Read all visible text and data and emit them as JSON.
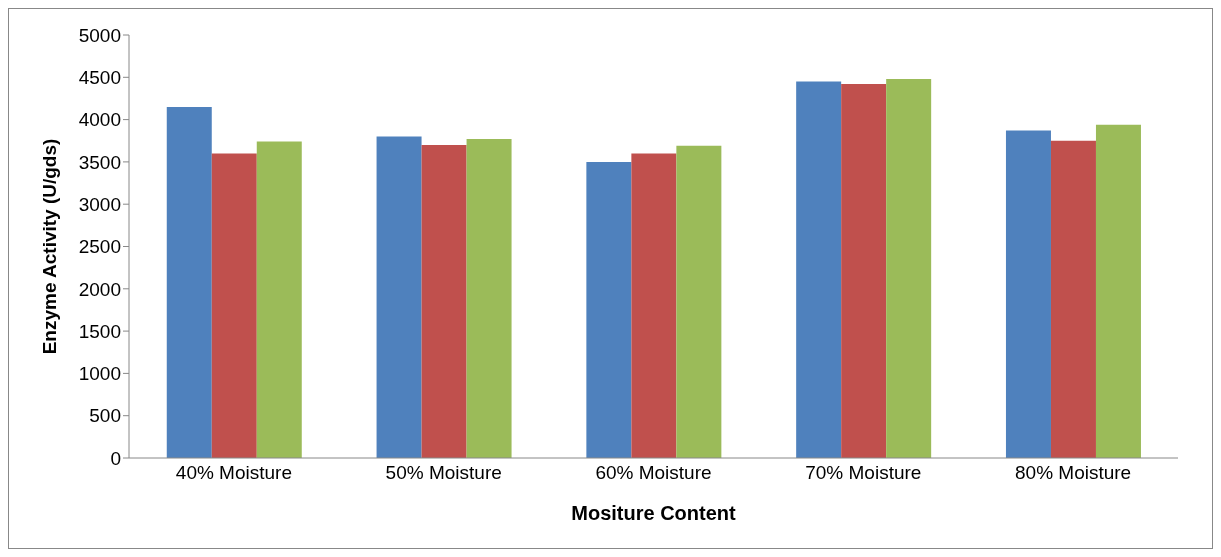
{
  "chart_data": {
    "type": "bar",
    "xlabel": "Mositure Content",
    "ylabel": "Enzyme Activity (U/gds)",
    "categories": [
      "40% Moisture",
      "50% Moisture",
      "60% Moisture",
      "70% Moisture",
      "80% Moisture"
    ],
    "series": [
      {
        "color": "#4f81bd",
        "values": [
          4150,
          3800,
          3500,
          4450,
          3870
        ]
      },
      {
        "color": "#c0504d",
        "values": [
          3600,
          3700,
          3600,
          4420,
          3750
        ]
      },
      {
        "color": "#9bbb59",
        "values": [
          3740,
          3770,
          3690,
          4480,
          3940
        ]
      }
    ],
    "ylim": [
      0,
      5000
    ],
    "yticks": [
      0,
      500,
      1000,
      1500,
      2000,
      2500,
      3000,
      3500,
      4000,
      4500,
      5000
    ],
    "grid": false,
    "legend": false
  }
}
